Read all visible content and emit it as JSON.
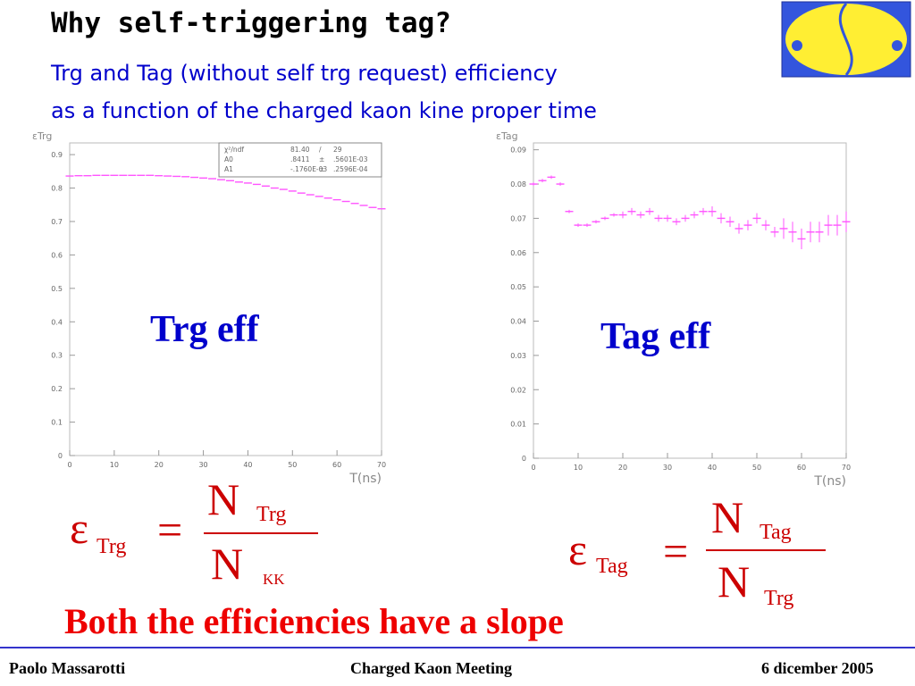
{
  "header": {
    "title": "Why self-triggering tag?",
    "subtitle": [
      "Trg and Tag (without self trg request) efficiency",
      "as a function of the charged kaon kine proper time"
    ]
  },
  "chart_data": [
    {
      "type": "scatter",
      "annotation": "Trg eff",
      "y_label": "εTrg",
      "x_label": "T(ns)",
      "color": "#ff55ff",
      "stats": [
        [
          "χ²/ndf",
          "81.40",
          "/",
          "29"
        ],
        [
          "A0",
          ".8411",
          "±",
          ".5601E-03"
        ],
        [
          "A1",
          "-.1760E-03",
          "±",
          ".2596E-04"
        ]
      ],
      "x": [
        0,
        2,
        4,
        6,
        8,
        10,
        12,
        14,
        16,
        18,
        20,
        22,
        24,
        26,
        28,
        30,
        32,
        34,
        36,
        38,
        40,
        42,
        44,
        46,
        48,
        50,
        52,
        54,
        56,
        58,
        60,
        62,
        64,
        66,
        68,
        70
      ],
      "values": [
        0.836,
        0.837,
        0.837,
        0.838,
        0.838,
        0.838,
        0.838,
        0.838,
        0.838,
        0.838,
        0.837,
        0.836,
        0.835,
        0.834,
        0.832,
        0.83,
        0.828,
        0.825,
        0.822,
        0.818,
        0.815,
        0.811,
        0.806,
        0.8,
        0.796,
        0.791,
        0.785,
        0.78,
        0.775,
        0.77,
        0.765,
        0.76,
        0.754,
        0.748,
        0.742,
        0.738
      ],
      "xlim": [
        0,
        70
      ],
      "ylim": [
        0,
        0.935
      ],
      "xticks": [
        0,
        10,
        20,
        30,
        40,
        50,
        60,
        70
      ],
      "yticks": [
        0,
        0.1,
        0.2,
        0.3,
        0.4,
        0.5,
        0.6,
        0.7,
        0.8,
        0.9
      ]
    },
    {
      "type": "scatter",
      "annotation": "Tag eff",
      "y_label": "εTag",
      "x_label": "T(ns)",
      "color": "#ff55ff",
      "x": [
        0,
        2,
        4,
        6,
        8,
        10,
        12,
        14,
        16,
        18,
        20,
        22,
        24,
        26,
        28,
        30,
        32,
        34,
        36,
        38,
        40,
        42,
        44,
        46,
        48,
        50,
        52,
        54,
        56,
        58,
        60,
        62,
        64,
        66,
        68,
        70
      ],
      "values": [
        0.08,
        0.081,
        0.082,
        0.08,
        0.072,
        0.068,
        0.068,
        0.069,
        0.07,
        0.071,
        0.071,
        0.072,
        0.071,
        0.072,
        0.07,
        0.07,
        0.069,
        0.07,
        0.071,
        0.072,
        0.072,
        0.07,
        0.069,
        0.067,
        0.068,
        0.07,
        0.068,
        0.066,
        0.067,
        0.066,
        0.064,
        0.066,
        0.066,
        0.068,
        0.068,
        0.069
      ],
      "errors": [
        0.0005,
        0.0005,
        0.0005,
        0.0005,
        0.0005,
        0.0005,
        0.0005,
        0.0005,
        0.0005,
        0.0005,
        0.001,
        0.001,
        0.001,
        0.001,
        0.001,
        0.001,
        0.001,
        0.001,
        0.001,
        0.001,
        0.0015,
        0.0015,
        0.0015,
        0.0015,
        0.0015,
        0.0015,
        0.0015,
        0.0015,
        0.003,
        0.003,
        0.003,
        0.003,
        0.003,
        0.003,
        0.003,
        0.003
      ],
      "xlim": [
        0,
        70
      ],
      "ylim": [
        0,
        0.092
      ],
      "xticks": [
        0,
        10,
        20,
        30,
        40,
        50,
        60,
        70
      ],
      "yticks": [
        0,
        0.01,
        0.02,
        0.03,
        0.04,
        0.05,
        0.06,
        0.07,
        0.08,
        0.09
      ]
    }
  ],
  "formulas": [
    {
      "lhs": "ε",
      "lhs_sub": "Trg",
      "eq": "=",
      "num": "N",
      "num_sub": "Trg",
      "den": "N",
      "den_sub": "KK"
    },
    {
      "lhs": "ε",
      "lhs_sub": "Tag",
      "eq": "=",
      "num": "N",
      "num_sub": "Tag",
      "den": "N",
      "den_sub": "Trg"
    }
  ],
  "conclusion": "Both the efficiencies have a slope",
  "footer": {
    "author": "Paolo Massarotti",
    "event": "Charged Kaon Meeting",
    "date": "6 dicember 2005"
  }
}
